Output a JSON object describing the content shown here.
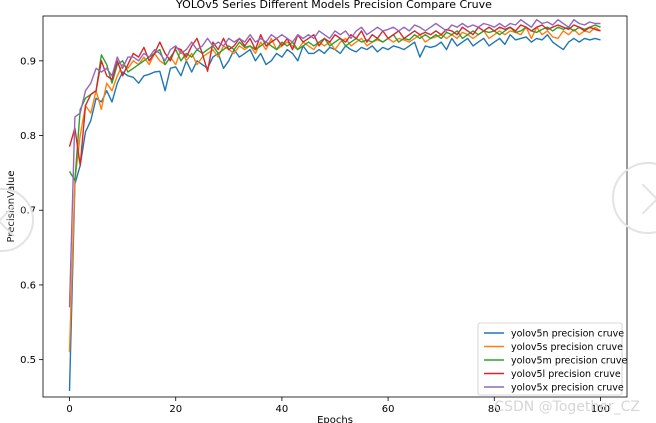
{
  "chart_data": {
    "type": "line",
    "title": "YOLOv5 Series Different Models Precision Compare Cruve",
    "xlabel": "Epochs",
    "ylabel": "PrecisionValue",
    "xlim": [
      -5,
      105
    ],
    "ylim": [
      0.45,
      0.96
    ],
    "x_ticks": [
      0,
      20,
      40,
      60,
      80,
      100
    ],
    "y_ticks": [
      0.5,
      0.6,
      0.7,
      0.8,
      0.9
    ],
    "x_tick_labels": [
      "0",
      "20",
      "40",
      "60",
      "80",
      "100"
    ],
    "y_tick_labels": [
      "0.5",
      "0.6",
      "0.7",
      "0.8",
      "0.9"
    ],
    "grid": false,
    "legend_position": "lower-right",
    "x": [
      0,
      1,
      2,
      3,
      4,
      5,
      6,
      7,
      8,
      9,
      10,
      11,
      12,
      13,
      14,
      15,
      16,
      17,
      18,
      19,
      20,
      21,
      22,
      23,
      24,
      25,
      26,
      27,
      28,
      29,
      30,
      31,
      32,
      33,
      34,
      35,
      36,
      37,
      38,
      39,
      40,
      41,
      42,
      43,
      44,
      45,
      46,
      47,
      48,
      49,
      50,
      51,
      52,
      53,
      54,
      55,
      56,
      57,
      58,
      59,
      60,
      61,
      62,
      63,
      64,
      65,
      66,
      67,
      68,
      69,
      70,
      71,
      72,
      73,
      74,
      75,
      76,
      77,
      78,
      79,
      80,
      81,
      82,
      83,
      84,
      85,
      86,
      87,
      88,
      89,
      90,
      91,
      92,
      93,
      94,
      95,
      96,
      97,
      98,
      99,
      100
    ],
    "series": [
      {
        "name": "yolov5n precision cruve",
        "color": "#1f77b4",
        "values": [
          0.458,
          0.735,
          0.76,
          0.805,
          0.82,
          0.85,
          0.845,
          0.86,
          0.845,
          0.87,
          0.885,
          0.88,
          0.878,
          0.87,
          0.88,
          0.882,
          0.885,
          0.886,
          0.86,
          0.89,
          0.892,
          0.88,
          0.9,
          0.885,
          0.9,
          0.895,
          0.89,
          0.905,
          0.91,
          0.89,
          0.9,
          0.915,
          0.905,
          0.91,
          0.915,
          0.9,
          0.91,
          0.895,
          0.9,
          0.91,
          0.905,
          0.915,
          0.91,
          0.9,
          0.92,
          0.91,
          0.91,
          0.915,
          0.91,
          0.918,
          0.915,
          0.91,
          0.92,
          0.915,
          0.912,
          0.918,
          0.915,
          0.92,
          0.912,
          0.918,
          0.915,
          0.92,
          0.918,
          0.915,
          0.92,
          0.925,
          0.905,
          0.92,
          0.918,
          0.92,
          0.925,
          0.915,
          0.93,
          0.92,
          0.925,
          0.93,
          0.92,
          0.925,
          0.93,
          0.92,
          0.925,
          0.93,
          0.922,
          0.935,
          0.928,
          0.93,
          0.932,
          0.925,
          0.93,
          0.928,
          0.935,
          0.925,
          0.92,
          0.915,
          0.925,
          0.93,
          0.925,
          0.93,
          0.928,
          0.93,
          0.928
        ]
      },
      {
        "name": "yolov5s precision cruve",
        "color": "#ff7f0e",
        "values": [
          0.51,
          0.74,
          0.8,
          0.84,
          0.83,
          0.86,
          0.835,
          0.87,
          0.86,
          0.88,
          0.895,
          0.89,
          0.9,
          0.895,
          0.905,
          0.895,
          0.91,
          0.9,
          0.895,
          0.905,
          0.895,
          0.915,
          0.9,
          0.91,
          0.895,
          0.905,
          0.91,
          0.915,
          0.905,
          0.92,
          0.915,
          0.91,
          0.92,
          0.915,
          0.92,
          0.91,
          0.925,
          0.915,
          0.93,
          0.915,
          0.92,
          0.925,
          0.92,
          0.915,
          0.925,
          0.92,
          0.915,
          0.925,
          0.92,
          0.925,
          0.915,
          0.925,
          0.93,
          0.92,
          0.925,
          0.93,
          0.92,
          0.925,
          0.928,
          0.925,
          0.93,
          0.925,
          0.93,
          0.928,
          0.925,
          0.93,
          0.935,
          0.925,
          0.93,
          0.932,
          0.935,
          0.93,
          0.935,
          0.93,
          0.938,
          0.935,
          0.93,
          0.935,
          0.94,
          0.93,
          0.935,
          0.94,
          0.935,
          0.94,
          0.938,
          0.935,
          0.945,
          0.93,
          0.945,
          0.935,
          0.94,
          0.932,
          0.93,
          0.94,
          0.935,
          0.942,
          0.935,
          0.94,
          0.938,
          0.945,
          0.94
        ]
      },
      {
        "name": "yolov5m precision cruve",
        "color": "#2ca02c",
        "values": [
          0.752,
          0.74,
          0.835,
          0.85,
          0.855,
          0.86,
          0.908,
          0.895,
          0.87,
          0.895,
          0.9,
          0.885,
          0.89,
          0.895,
          0.9,
          0.905,
          0.91,
          0.915,
          0.895,
          0.905,
          0.915,
          0.9,
          0.91,
          0.905,
          0.915,
          0.91,
          0.915,
          0.92,
          0.91,
          0.915,
          0.92,
          0.915,
          0.925,
          0.918,
          0.92,
          0.915,
          0.92,
          0.925,
          0.92,
          0.915,
          0.925,
          0.92,
          0.925,
          0.915,
          0.92,
          0.925,
          0.92,
          0.925,
          0.93,
          0.92,
          0.925,
          0.93,
          0.92,
          0.925,
          0.93,
          0.925,
          0.928,
          0.925,
          0.93,
          0.925,
          0.93,
          0.935,
          0.925,
          0.93,
          0.928,
          0.935,
          0.93,
          0.935,
          0.93,
          0.935,
          0.93,
          0.938,
          0.935,
          0.94,
          0.93,
          0.935,
          0.94,
          0.935,
          0.94,
          0.938,
          0.94,
          0.935,
          0.94,
          0.945,
          0.938,
          0.94,
          0.945,
          0.94,
          0.938,
          0.942,
          0.945,
          0.94,
          0.945,
          0.942,
          0.945,
          0.94,
          0.945,
          0.942,
          0.945,
          0.948,
          0.945
        ]
      },
      {
        "name": "yolov5l precision cruve",
        "color": "#d62728",
        "values": [
          0.785,
          0.81,
          0.76,
          0.84,
          0.855,
          0.86,
          0.9,
          0.88,
          0.875,
          0.9,
          0.88,
          0.895,
          0.91,
          0.905,
          0.918,
          0.9,
          0.91,
          0.925,
          0.91,
          0.9,
          0.918,
          0.915,
          0.905,
          0.92,
          0.93,
          0.91,
          0.886,
          0.925,
          0.915,
          0.93,
          0.915,
          0.92,
          0.93,
          0.92,
          0.93,
          0.915,
          0.935,
          0.92,
          0.925,
          0.93,
          0.92,
          0.93,
          0.915,
          0.935,
          0.925,
          0.93,
          0.935,
          0.92,
          0.93,
          0.925,
          0.935,
          0.93,
          0.925,
          0.935,
          0.93,
          0.94,
          0.925,
          0.935,
          0.93,
          0.94,
          0.93,
          0.935,
          0.94,
          0.93,
          0.935,
          0.94,
          0.935,
          0.938,
          0.935,
          0.94,
          0.935,
          0.942,
          0.94,
          0.935,
          0.945,
          0.94,
          0.935,
          0.945,
          0.94,
          0.945,
          0.94,
          0.945,
          0.942,
          0.945,
          0.94,
          0.948,
          0.945,
          0.94,
          0.945,
          0.948,
          0.942,
          0.945,
          0.948,
          0.945,
          0.942,
          0.948,
          0.945,
          0.94,
          0.945,
          0.942,
          0.94
        ]
      },
      {
        "name": "yolov5x precision cruve",
        "color": "#9467bd",
        "values": [
          0.57,
          0.825,
          0.83,
          0.86,
          0.87,
          0.89,
          0.885,
          0.89,
          0.88,
          0.905,
          0.89,
          0.905,
          0.905,
          0.9,
          0.91,
          0.905,
          0.915,
          0.91,
          0.9,
          0.915,
          0.92,
          0.91,
          0.915,
          0.925,
          0.915,
          0.92,
          0.93,
          0.92,
          0.925,
          0.92,
          0.93,
          0.925,
          0.93,
          0.925,
          0.935,
          0.925,
          0.93,
          0.925,
          0.935,
          0.93,
          0.935,
          0.93,
          0.925,
          0.935,
          0.93,
          0.935,
          0.93,
          0.94,
          0.935,
          0.93,
          0.94,
          0.935,
          0.94,
          0.93,
          0.94,
          0.945,
          0.935,
          0.94,
          0.945,
          0.94,
          0.942,
          0.945,
          0.94,
          0.945,
          0.94,
          0.948,
          0.945,
          0.94,
          0.945,
          0.95,
          0.945,
          0.94,
          0.948,
          0.945,
          0.95,
          0.945,
          0.948,
          0.945,
          0.95,
          0.948,
          0.945,
          0.95,
          0.945,
          0.95,
          0.948,
          0.955,
          0.95,
          0.945,
          0.955,
          0.95,
          0.952,
          0.948,
          0.955,
          0.95,
          0.945,
          0.955,
          0.95,
          0.948,
          0.952,
          0.95,
          0.95
        ]
      }
    ]
  },
  "watermark": "CSDN @Together_CZ"
}
